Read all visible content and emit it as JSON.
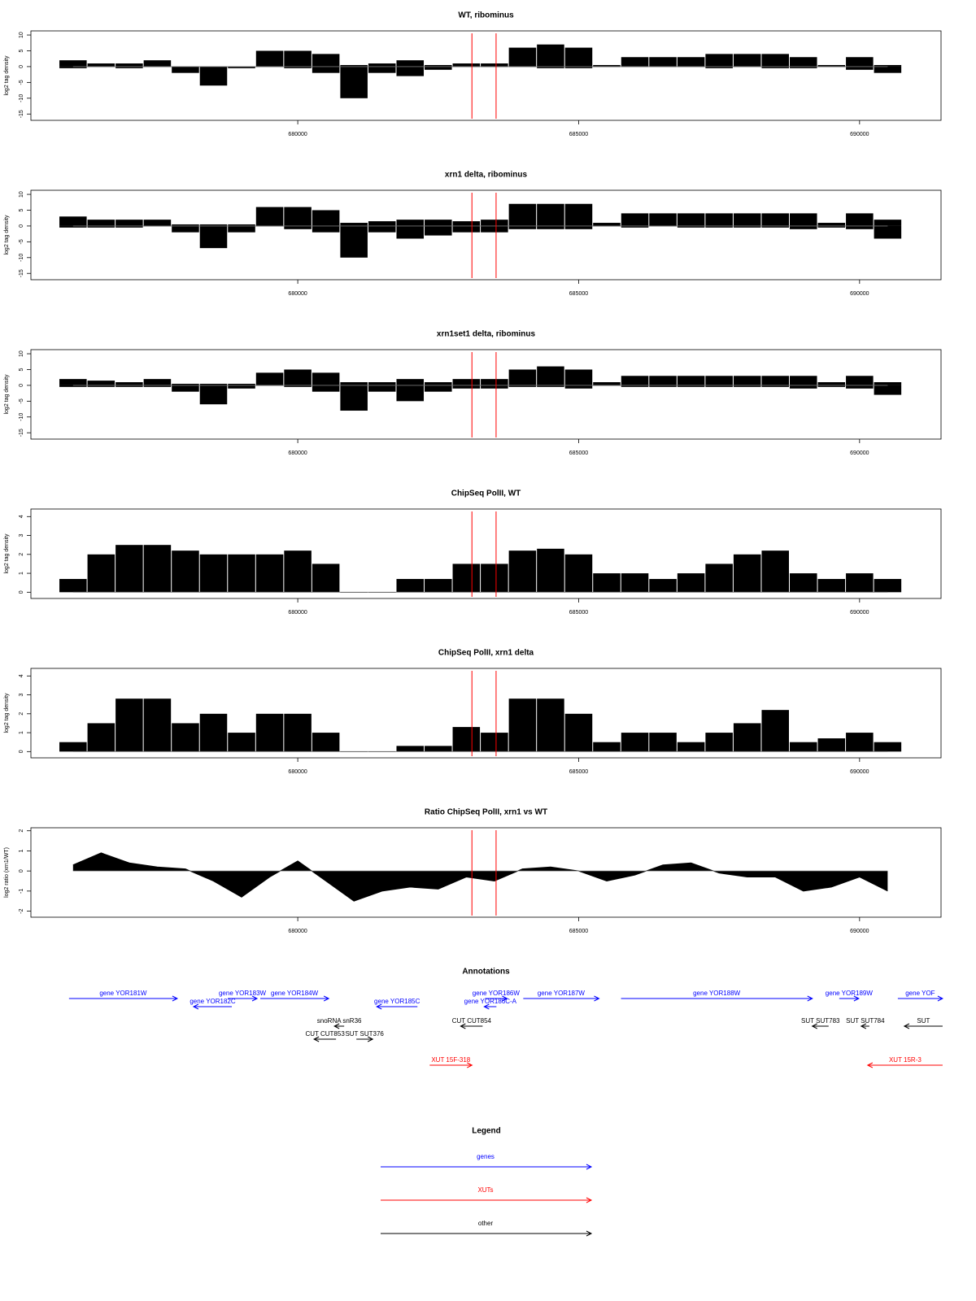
{
  "chart_data": [
    {
      "type": "bar",
      "title": "WT, ribominus",
      "ylabel": "log2 tag density",
      "x": [
        676000,
        676500,
        677000,
        677500,
        678000,
        678500,
        679000,
        679500,
        680000,
        680500,
        681000,
        681500,
        682000,
        682500,
        683000,
        683500,
        684000,
        684500,
        685000,
        685500,
        686000,
        686500,
        687000,
        687500,
        688000,
        688500,
        689000,
        689500,
        690000,
        690500
      ],
      "series": [
        {
          "color": "#000000",
          "values": [
            2,
            1,
            1,
            2,
            0,
            0,
            0,
            5,
            5,
            4,
            0.5,
            1,
            2,
            0.5,
            1,
            1,
            6,
            7,
            6,
            0.5,
            3,
            3,
            3,
            4,
            4,
            4,
            3,
            0.5,
            3,
            0.5
          ]
        },
        {
          "color": "#000000",
          "values": [
            -0.5,
            0,
            -0.5,
            0,
            -2,
            -6,
            -0.5,
            0,
            -0.5,
            -2,
            -10,
            -2,
            -3,
            -1,
            0,
            0,
            0,
            -0.5,
            -0.5,
            0,
            0,
            0,
            0,
            -0.5,
            0,
            -0.5,
            -0.5,
            0,
            -1,
            -2
          ]
        }
      ],
      "xlim": [
        675250,
        691450
      ],
      "ylim": [
        -17,
        11.3
      ],
      "xticks": [
        680000,
        685000,
        690000
      ],
      "yticks": [
        -15,
        -10,
        -5,
        0,
        5,
        10
      ],
      "vlines": [
        683100,
        683530
      ],
      "vline_color": "#ff0000"
    },
    {
      "type": "bar",
      "title": "xrn1 delta, ribominus",
      "ylabel": "log2 tag density",
      "x": [
        676000,
        676500,
        677000,
        677500,
        678000,
        678500,
        679000,
        679500,
        680000,
        680500,
        681000,
        681500,
        682000,
        682500,
        683000,
        683500,
        684000,
        684500,
        685000,
        685500,
        686000,
        686500,
        687000,
        687500,
        688000,
        688500,
        689000,
        689500,
        690000,
        690500
      ],
      "series": [
        {
          "color": "#000000",
          "values": [
            3,
            2,
            2,
            2,
            0.5,
            0.5,
            0.5,
            6,
            6,
            5,
            1,
            1.5,
            2,
            2,
            1.5,
            2,
            7,
            7,
            7,
            1,
            4,
            4,
            4,
            4,
            4,
            4,
            4,
            1,
            4,
            2
          ]
        },
        {
          "color": "#000000",
          "values": [
            -0.5,
            -0.5,
            -0.5,
            0,
            -2,
            -7,
            -2,
            0,
            -1,
            -2,
            -10,
            -2,
            -4,
            -3,
            -2,
            -2,
            -1,
            -1,
            -1,
            0,
            -0.5,
            0,
            -0.5,
            -0.5,
            -0.5,
            -0.5,
            -1,
            -0.5,
            -1,
            -4
          ]
        }
      ],
      "xlim": [
        675250,
        691450
      ],
      "ylim": [
        -17,
        11.3
      ],
      "xticks": [
        680000,
        685000,
        690000
      ],
      "yticks": [
        -15,
        -10,
        -5,
        0,
        5,
        10
      ],
      "vlines": [
        683100,
        683530
      ],
      "vline_color": "#ff0000"
    },
    {
      "type": "bar",
      "title": "xrn1set1 delta, ribominus",
      "ylabel": "log2 tag density",
      "x": [
        676000,
        676500,
        677000,
        677500,
        678000,
        678500,
        679000,
        679500,
        680000,
        680500,
        681000,
        681500,
        682000,
        682500,
        683000,
        683500,
        684000,
        684500,
        685000,
        685500,
        686000,
        686500,
        687000,
        687500,
        688000,
        688500,
        689000,
        689500,
        690000,
        690500
      ],
      "series": [
        {
          "color": "#000000",
          "values": [
            2,
            1.5,
            1,
            2,
            0.5,
            0.5,
            0.5,
            4,
            5,
            4,
            1,
            1,
            2,
            1,
            2,
            2,
            5,
            6,
            5,
            1,
            3,
            3,
            3,
            3,
            3,
            3,
            3,
            1,
            3,
            1
          ]
        },
        {
          "color": "#000000",
          "values": [
            -0.5,
            -0.5,
            -0.5,
            -0.5,
            -2,
            -6,
            -1,
            0,
            -0.5,
            -2,
            -8,
            -2,
            -5,
            -2,
            -1,
            -1,
            -0.5,
            -0.5,
            -1,
            0,
            -0.5,
            -0.5,
            -0.5,
            -0.5,
            -0.5,
            -0.5,
            -1,
            -0.5,
            -1,
            -3
          ]
        }
      ],
      "xlim": [
        675250,
        691450
      ],
      "ylim": [
        -17,
        11.3
      ],
      "xticks": [
        680000,
        685000,
        690000
      ],
      "yticks": [
        -15,
        -10,
        -5,
        0,
        5,
        10
      ],
      "vlines": [
        683100,
        683530
      ],
      "vline_color": "#ff0000"
    },
    {
      "type": "bar",
      "title": "ChipSeq PolII, WT",
      "ylabel": "log2 tag density",
      "x": [
        676000,
        676500,
        677000,
        677500,
        678000,
        678500,
        679000,
        679500,
        680000,
        680500,
        681000,
        681500,
        682000,
        682500,
        683000,
        683500,
        684000,
        684500,
        685000,
        685500,
        686000,
        686500,
        687000,
        687500,
        688000,
        688500,
        689000,
        689500,
        690000,
        690500
      ],
      "series": [
        {
          "color": "#000000",
          "values": [
            0.7,
            2,
            2.5,
            2.5,
            2.2,
            2,
            2,
            2,
            2.2,
            1.5,
            0,
            0,
            0.7,
            0.7,
            1.5,
            1.5,
            2.2,
            2.3,
            2,
            1,
            1,
            0.7,
            1,
            1.5,
            2,
            2.2,
            1,
            0.7,
            1,
            0.7
          ]
        }
      ],
      "xlim": [
        675250,
        691450
      ],
      "ylim": [
        -0.33,
        4.4
      ],
      "xticks": [
        680000,
        685000,
        690000
      ],
      "yticks": [
        0,
        1,
        2,
        3,
        4
      ],
      "vlines": [
        683100,
        683530
      ],
      "vline_color": "#ff0000"
    },
    {
      "type": "bar",
      "title": "ChipSeq PolII, xrn1 delta",
      "ylabel": "log2 tag density",
      "x": [
        676000,
        676500,
        677000,
        677500,
        678000,
        678500,
        679000,
        679500,
        680000,
        680500,
        681000,
        681500,
        682000,
        682500,
        683000,
        683500,
        684000,
        684500,
        685000,
        685500,
        686000,
        686500,
        687000,
        687500,
        688000,
        688500,
        689000,
        689500,
        690000,
        690500
      ],
      "series": [
        {
          "color": "#000000",
          "values": [
            0.5,
            1.5,
            2.8,
            2.8,
            1.5,
            2,
            1,
            2,
            2,
            1,
            0,
            0,
            0.3,
            0.3,
            1.3,
            1,
            2.8,
            2.8,
            2,
            0.5,
            1,
            1,
            0.5,
            1,
            1.5,
            2.2,
            0.5,
            0.7,
            1,
            0.5
          ]
        }
      ],
      "xlim": [
        675250,
        691450
      ],
      "ylim": [
        -0.33,
        4.4
      ],
      "xticks": [
        680000,
        685000,
        690000
      ],
      "yticks": [
        0,
        1,
        2,
        3,
        4
      ],
      "vlines": [
        683100,
        683530
      ],
      "vline_color": "#ff0000"
    },
    {
      "type": "area",
      "title": "Ratio ChipSeq PolII, xrn1 vs WT",
      "ylabel": "log2 ratio (xrn1/WT)",
      "x": [
        676000,
        676500,
        677000,
        677500,
        678000,
        678500,
        679000,
        679500,
        680000,
        680500,
        681000,
        681500,
        682000,
        682500,
        683000,
        683500,
        684000,
        684500,
        685000,
        685500,
        686000,
        686500,
        687000,
        687500,
        688000,
        688500,
        689000,
        689500,
        690000,
        690500
      ],
      "series": [
        {
          "color": "#000000",
          "values": [
            0.3,
            0.9,
            0.4,
            0.2,
            0.1,
            -0.5,
            -1.3,
            -0.3,
            0.5,
            -0.5,
            -1.5,
            -1,
            -0.8,
            -0.9,
            -0.3,
            -0.5,
            0.1,
            0.2,
            0,
            -0.5,
            -0.2,
            0.3,
            0.4,
            -0.1,
            -0.3,
            -0.3,
            -1,
            -0.8,
            -0.3,
            -1
          ]
        }
      ],
      "xlim": [
        675250,
        691450
      ],
      "ylim": [
        -2.3,
        2.15
      ],
      "xticks": [
        680000,
        685000,
        690000
      ],
      "yticks": [
        -2,
        -1,
        0,
        1,
        2
      ],
      "vlines": [
        683100,
        683530
      ],
      "vline_color": "#ff0000"
    },
    {
      "type": "features",
      "title": "Annotations",
      "xlim": [
        675250,
        691450
      ],
      "features": [
        {
          "label": "gene YOR181W",
          "start": 675928,
          "end": 677855,
          "strand": "+",
          "kind": "genes"
        },
        {
          "label": "gene YOR182C",
          "start": 678145,
          "end": 678826,
          "strand": "-",
          "kind": "genes"
        },
        {
          "label": "gene YOR183W",
          "start": 678754,
          "end": 679275,
          "strand": "+",
          "kind": "genes"
        },
        {
          "label": "gene YOR184W",
          "start": 679333,
          "end": 680551,
          "strand": "+",
          "kind": "genes"
        },
        {
          "label": "gene YOR185C",
          "start": 681406,
          "end": 682130,
          "strand": "-",
          "kind": "genes"
        },
        {
          "label": "gene YOR186W",
          "start": 683333,
          "end": 683725,
          "strand": "+",
          "kind": "genes"
        },
        {
          "label": "gene YOR186C-A",
          "start": 683319,
          "end": 683536,
          "strand": "-",
          "kind": "genes"
        },
        {
          "label": "gene YOR187W",
          "start": 684014,
          "end": 685362,
          "strand": "+",
          "kind": "genes"
        },
        {
          "label": "gene YOR188W",
          "start": 685754,
          "end": 689159,
          "strand": "+",
          "kind": "genes"
        },
        {
          "label": "gene YOR189W",
          "start": 689638,
          "end": 689986,
          "strand": "+",
          "kind": "genes"
        },
        {
          "label": "gene YOF",
          "start": 690681,
          "end": 691478,
          "strand": "+",
          "kind": "genes"
        },
        {
          "label": "snoRNA snR36",
          "start": 680652,
          "end": 680826,
          "strand": "-",
          "kind": "other"
        },
        {
          "label": "SUT SUT376",
          "start": 681043,
          "end": 681333,
          "strand": "+",
          "kind": "other"
        },
        {
          "label": "CUT CUT853",
          "start": 680290,
          "end": 680681,
          "strand": "-",
          "kind": "other"
        },
        {
          "label": "CUT CUT854",
          "start": 682899,
          "end": 683290,
          "strand": "-",
          "kind": "other"
        },
        {
          "label": "SUT SUT783",
          "start": 689159,
          "end": 689449,
          "strand": "-",
          "kind": "other"
        },
        {
          "label": "SUT SUT784",
          "start": 690029,
          "end": 690174,
          "strand": "-",
          "kind": "other"
        },
        {
          "label": "SUT",
          "start": 690797,
          "end": 691478,
          "strand": "-",
          "kind": "other"
        },
        {
          "label": "XUT 15F-318",
          "start": 682348,
          "end": 683101,
          "strand": "+",
          "kind": "XUTs"
        },
        {
          "label": "XUT 15R-3",
          "start": 690145,
          "end": 691478,
          "strand": "-",
          "kind": "XUTs"
        }
      ]
    }
  ],
  "legend": {
    "title": "Legend",
    "items": [
      {
        "name": "genes",
        "color": "#0000ff"
      },
      {
        "name": "XUTs",
        "color": "#ff0000"
      },
      {
        "name": "other",
        "color": "#000000"
      }
    ]
  }
}
